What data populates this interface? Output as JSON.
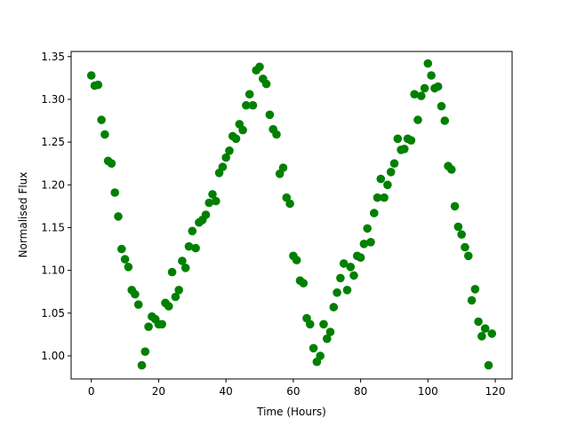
{
  "chart_data": {
    "type": "scatter",
    "title": "",
    "xlabel": "Time (Hours)",
    "ylabel": "Normalised Flux",
    "xlim": [
      -6,
      125
    ],
    "ylim": [
      0.973,
      1.356
    ],
    "xticks": [
      0,
      20,
      40,
      60,
      80,
      100,
      120
    ],
    "xtick_labels": [
      "0",
      "20",
      "40",
      "60",
      "80",
      "100",
      "120"
    ],
    "yticks": [
      1.0,
      1.05,
      1.1,
      1.15,
      1.2,
      1.25,
      1.3,
      1.35
    ],
    "ytick_labels": [
      "1.00",
      "1.05",
      "1.10",
      "1.15",
      "1.20",
      "1.25",
      "1.30",
      "1.35"
    ],
    "grid": false,
    "legend": "none",
    "marker_color": "#008000",
    "series": [
      {
        "x": [
          0,
          1,
          2,
          3,
          4,
          5,
          6,
          7,
          8,
          9,
          10,
          11,
          12,
          13,
          14,
          15,
          16,
          17,
          18,
          19,
          20,
          21,
          22,
          23,
          24,
          25,
          26,
          27,
          28,
          29,
          30,
          31,
          32,
          33,
          34,
          35,
          36,
          37,
          38,
          39,
          40,
          41,
          42,
          43,
          44,
          45,
          46,
          47,
          48,
          49,
          50,
          51,
          52,
          53,
          54,
          55,
          56,
          57,
          58,
          59,
          60,
          61,
          62,
          63,
          64,
          65,
          66,
          67,
          68,
          69,
          70,
          71,
          72,
          73,
          74,
          75,
          76,
          77,
          78,
          79,
          80,
          81,
          82,
          83,
          84,
          85,
          86,
          87,
          88,
          89,
          90,
          91,
          92,
          93,
          94,
          95,
          96,
          97,
          98,
          99,
          100,
          101,
          102,
          103,
          104,
          105,
          106,
          107,
          108,
          109,
          110,
          111,
          112,
          113,
          114,
          115,
          116,
          117,
          118,
          119
        ],
        "y": [
          1.328,
          1.316,
          1.317,
          1.276,
          1.259,
          1.228,
          1.225,
          1.191,
          1.163,
          1.125,
          1.113,
          1.104,
          1.077,
          1.072,
          1.06,
          0.989,
          1.005,
          1.034,
          1.046,
          1.043,
          1.037,
          1.037,
          1.062,
          1.058,
          1.098,
          1.069,
          1.077,
          1.111,
          1.103,
          1.128,
          1.146,
          1.126,
          1.156,
          1.159,
          1.165,
          1.179,
          1.189,
          1.181,
          1.214,
          1.221,
          1.232,
          1.24,
          1.257,
          1.254,
          1.271,
          1.264,
          1.293,
          1.306,
          1.293,
          1.334,
          1.338,
          1.324,
          1.318,
          1.282,
          1.265,
          1.259,
          1.213,
          1.22,
          1.185,
          1.178,
          1.117,
          1.112,
          1.088,
          1.085,
          1.044,
          1.037,
          1.009,
          0.993,
          1.0,
          1.037,
          1.02,
          1.028,
          1.057,
          1.074,
          1.091,
          1.108,
          1.077,
          1.104,
          1.094,
          1.117,
          1.115,
          1.131,
          1.149,
          1.133,
          1.167,
          1.185,
          1.207,
          1.185,
          1.2,
          1.215,
          1.225,
          1.254,
          1.241,
          1.242,
          1.254,
          1.252,
          1.306,
          1.276,
          1.304,
          1.313,
          1.342,
          1.328,
          1.313,
          1.315,
          1.292,
          1.275,
          1.222,
          1.218,
          1.175,
          1.151,
          1.142,
          1.127,
          1.117,
          1.065,
          1.078,
          1.04,
          1.023,
          1.032,
          0.989,
          1.026
        ]
      }
    ]
  }
}
